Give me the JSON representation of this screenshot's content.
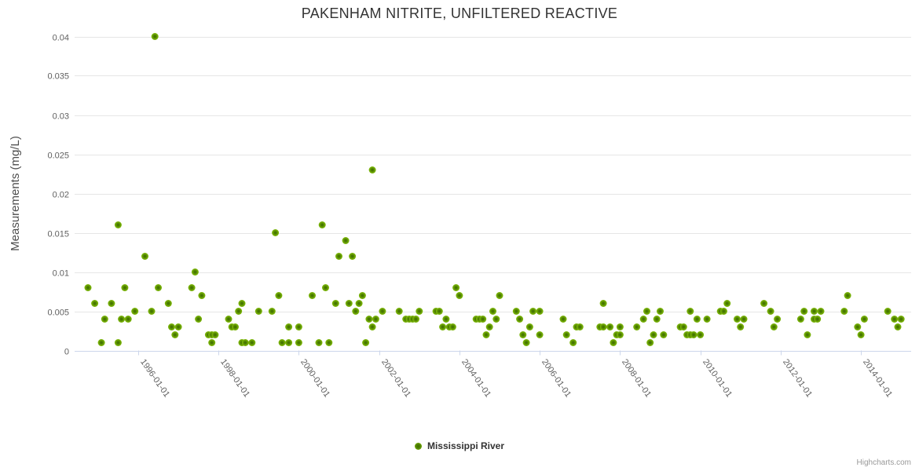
{
  "credits": "Highcharts.com",
  "chart_data": {
    "type": "scatter",
    "title": "PAKENHAM NITRITE, UNFILTERED REACTIVE",
    "xlabel": "",
    "ylabel": "Measurements (mg/L)",
    "grid": true,
    "legend_position": "bottom-center",
    "ylim": [
      0,
      0.04
    ],
    "xlim": [
      "1994-06",
      "2015-04"
    ],
    "y_ticks": [
      0,
      0.005,
      0.01,
      0.015,
      0.02,
      0.025,
      0.03,
      0.035,
      0.04
    ],
    "y_tick_labels": [
      "0",
      "0.005",
      "0.01",
      "0.015",
      "0.02",
      "0.025",
      "0.03",
      "0.035",
      "0.04"
    ],
    "x_tick_labels": [
      "1996-01-01",
      "1998-01-01",
      "2000-01-01",
      "2002-01-01",
      "2004-01-01",
      "2006-01-01",
      "2008-01-01",
      "2010-01-01",
      "2012-01-01",
      "2014-01-01"
    ],
    "marker_color": "#76B106",
    "grid_color": "#e6e6e6",
    "axis_line_color": "#ccd6eb",
    "series": [
      {
        "name": "Mississippi River",
        "color": "#76B106",
        "points": [
          [
            "1994-10",
            0.008
          ],
          [
            "1994-12",
            0.006
          ],
          [
            "1995-02",
            0.001
          ],
          [
            "1995-03",
            0.004
          ],
          [
            "1995-05",
            0.006
          ],
          [
            "1995-07",
            0.016
          ],
          [
            "1995-07",
            0.001
          ],
          [
            "1995-08",
            0.004
          ],
          [
            "1995-09",
            0.008
          ],
          [
            "1995-10",
            0.004
          ],
          [
            "1995-12",
            0.005
          ],
          [
            "1996-03",
            0.012
          ],
          [
            "1996-05",
            0.005
          ],
          [
            "1996-06",
            0.04
          ],
          [
            "1996-07",
            0.008
          ],
          [
            "1996-10",
            0.006
          ],
          [
            "1996-11",
            0.003
          ],
          [
            "1996-12",
            0.002
          ],
          [
            "1997-01",
            0.003
          ],
          [
            "1997-05",
            0.008
          ],
          [
            "1997-06",
            0.01
          ],
          [
            "1997-07",
            0.004
          ],
          [
            "1997-08",
            0.007
          ],
          [
            "1997-10",
            0.002
          ],
          [
            "1997-11",
            0.001
          ],
          [
            "1997-11",
            0.002
          ],
          [
            "1997-12",
            0.002
          ],
          [
            "1998-04",
            0.004
          ],
          [
            "1998-05",
            0.003
          ],
          [
            "1998-06",
            0.003
          ],
          [
            "1998-07",
            0.005
          ],
          [
            "1998-08",
            0.006
          ],
          [
            "1998-08",
            0.001
          ],
          [
            "1998-09",
            0.001
          ],
          [
            "1998-11",
            0.001
          ],
          [
            "1999-01",
            0.005
          ],
          [
            "1999-05",
            0.005
          ],
          [
            "1999-06",
            0.015
          ],
          [
            "1999-07",
            0.007
          ],
          [
            "1999-08",
            0.001
          ],
          [
            "1999-10",
            0.003
          ],
          [
            "1999-10",
            0.001
          ],
          [
            "2000-01",
            0.003
          ],
          [
            "2000-01",
            0.001
          ],
          [
            "2000-05",
            0.007
          ],
          [
            "2000-07",
            0.001
          ],
          [
            "2000-08",
            0.016
          ],
          [
            "2000-09",
            0.008
          ],
          [
            "2000-10",
            0.001
          ],
          [
            "2000-12",
            0.006
          ],
          [
            "2001-01",
            0.012
          ],
          [
            "2001-03",
            0.014
          ],
          [
            "2001-04",
            0.006
          ],
          [
            "2001-05",
            0.012
          ],
          [
            "2001-06",
            0.005
          ],
          [
            "2001-07",
            0.006
          ],
          [
            "2001-08",
            0.007
          ],
          [
            "2001-09",
            0.001
          ],
          [
            "2001-10",
            0.004
          ],
          [
            "2001-11",
            0.023
          ],
          [
            "2001-11",
            0.003
          ],
          [
            "2001-12",
            0.004
          ],
          [
            "2002-02",
            0.005
          ],
          [
            "2002-07",
            0.005
          ],
          [
            "2002-09",
            0.004
          ],
          [
            "2002-10",
            0.004
          ],
          [
            "2002-11",
            0.004
          ],
          [
            "2002-12",
            0.004
          ],
          [
            "2003-01",
            0.005
          ],
          [
            "2003-06",
            0.005
          ],
          [
            "2003-07",
            0.005
          ],
          [
            "2003-08",
            0.003
          ],
          [
            "2003-09",
            0.004
          ],
          [
            "2003-10",
            0.003
          ],
          [
            "2003-11",
            0.003
          ],
          [
            "2003-12",
            0.008
          ],
          [
            "2004-01",
            0.007
          ],
          [
            "2004-06",
            0.004
          ],
          [
            "2004-07",
            0.004
          ],
          [
            "2004-08",
            0.004
          ],
          [
            "2004-09",
            0.002
          ],
          [
            "2004-10",
            0.003
          ],
          [
            "2004-11",
            0.005
          ],
          [
            "2004-12",
            0.004
          ],
          [
            "2005-01",
            0.007
          ],
          [
            "2005-06",
            0.005
          ],
          [
            "2005-07",
            0.004
          ],
          [
            "2005-08",
            0.002
          ],
          [
            "2005-09",
            0.001
          ],
          [
            "2005-10",
            0.003
          ],
          [
            "2005-11",
            0.005
          ],
          [
            "2006-01",
            0.005
          ],
          [
            "2006-01",
            0.002
          ],
          [
            "2006-08",
            0.004
          ],
          [
            "2006-09",
            0.002
          ],
          [
            "2006-11",
            0.001
          ],
          [
            "2006-12",
            0.003
          ],
          [
            "2007-01",
            0.003
          ],
          [
            "2007-07",
            0.003
          ],
          [
            "2007-08",
            0.006
          ],
          [
            "2007-08",
            0.003
          ],
          [
            "2007-10",
            0.003
          ],
          [
            "2007-11",
            0.001
          ],
          [
            "2007-12",
            0.002
          ],
          [
            "2008-01",
            0.002
          ],
          [
            "2008-01",
            0.003
          ],
          [
            "2008-06",
            0.003
          ],
          [
            "2008-08",
            0.004
          ],
          [
            "2008-09",
            0.005
          ],
          [
            "2008-10",
            0.001
          ],
          [
            "2008-11",
            0.002
          ],
          [
            "2008-12",
            0.004
          ],
          [
            "2009-01",
            0.005
          ],
          [
            "2009-02",
            0.002
          ],
          [
            "2009-07",
            0.003
          ],
          [
            "2009-08",
            0.003
          ],
          [
            "2009-09",
            0.002
          ],
          [
            "2009-10",
            0.005
          ],
          [
            "2009-10",
            0.002
          ],
          [
            "2009-11",
            0.002
          ],
          [
            "2009-12",
            0.004
          ],
          [
            "2010-01",
            0.002
          ],
          [
            "2010-03",
            0.004
          ],
          [
            "2010-07",
            0.005
          ],
          [
            "2010-08",
            0.005
          ],
          [
            "2010-09",
            0.006
          ],
          [
            "2010-12",
            0.004
          ],
          [
            "2011-01",
            0.003
          ],
          [
            "2011-02",
            0.004
          ],
          [
            "2011-08",
            0.006
          ],
          [
            "2011-10",
            0.005
          ],
          [
            "2011-11",
            0.003
          ],
          [
            "2011-12",
            0.004
          ],
          [
            "2012-07",
            0.004
          ],
          [
            "2012-08",
            0.005
          ],
          [
            "2012-09",
            0.002
          ],
          [
            "2012-11",
            0.005
          ],
          [
            "2012-11",
            0.004
          ],
          [
            "2012-12",
            0.004
          ],
          [
            "2013-01",
            0.005
          ],
          [
            "2013-08",
            0.005
          ],
          [
            "2013-09",
            0.007
          ],
          [
            "2013-12",
            0.003
          ],
          [
            "2014-01",
            0.002
          ],
          [
            "2014-02",
            0.004
          ],
          [
            "2014-09",
            0.005
          ],
          [
            "2014-11",
            0.004
          ],
          [
            "2014-12",
            0.003
          ],
          [
            "2015-01",
            0.004
          ]
        ]
      }
    ]
  }
}
